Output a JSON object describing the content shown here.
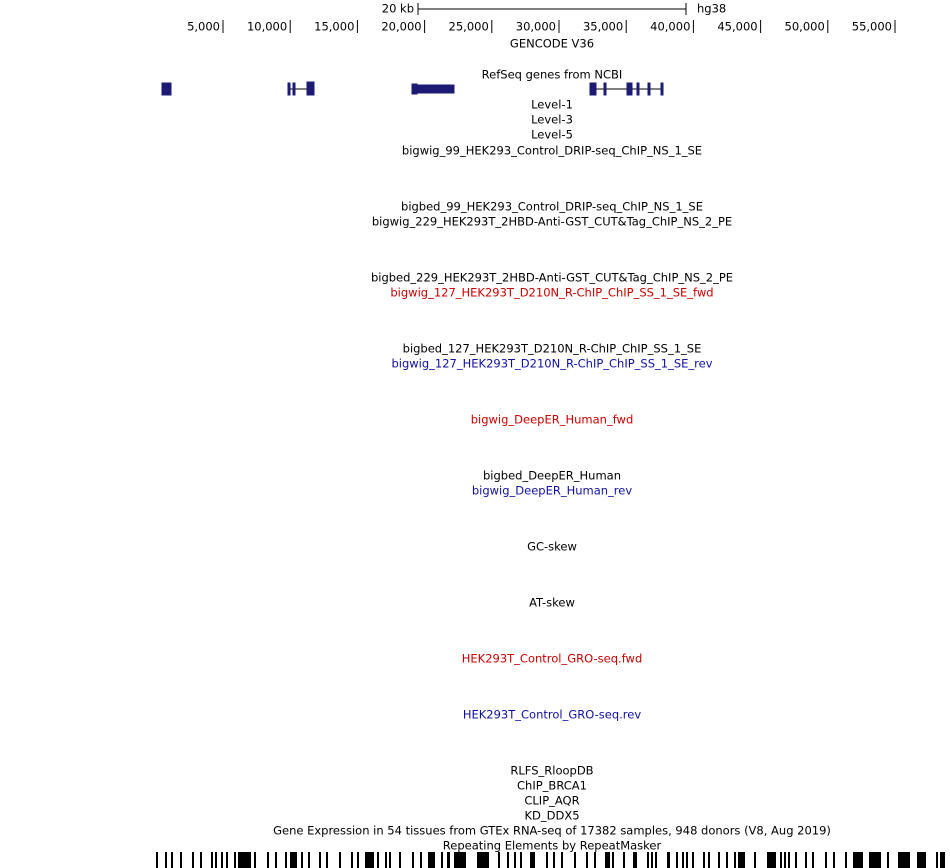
{
  "scale": {
    "size": "20 kb",
    "assembly": "hg38"
  },
  "ruler": {
    "ticks": [
      "5,000",
      "10,000",
      "15,000",
      "20,000",
      "25,000",
      "30,000",
      "35,000",
      "40,000",
      "45,000",
      "50,000",
      "55,000"
    ]
  },
  "tracks": [
    "GENCODE V36",
    "RefSeq genes from NCBI",
    "Level-1",
    "Level-3",
    "Level-5",
    "bigwig_99_HEK293_Control_DRIP-seq_ChIP_NS_1_SE",
    "bigbed_99_HEK293_Control_DRIP-seq_ChIP_NS_1_SE",
    "bigwig_229_HEK293T_2HBD-Anti-GST_CUT&Tag_ChIP_NS_2_PE",
    "bigbed_229_HEK293T_2HBD-Anti-GST_CUT&Tag_ChIP_NS_2_PE",
    "bigwig_127_HEK293T_D210N_R-ChIP_ChIP_SS_1_SE_fwd",
    "bigbed_127_HEK293T_D210N_R-ChIP_ChIP_SS_1_SE",
    "bigwig_127_HEK293T_D210N_R-ChIP_ChIP_SS_1_SE_rev",
    "bigwig_DeepER_Human_fwd",
    "bigbed_DeepER_Human",
    "bigwig_DeepER_Human_rev",
    "GC-skew",
    "AT-skew",
    "HEK293T_Control_GRO-seq.fwd",
    "HEK293T_Control_GRO-seq.rev",
    "RLFS_RloopDB",
    "ChIP_BRCA1",
    "CLIP_AQR",
    "KD_DDX5",
    "Gene Expression in 54 tissues from GTEx RNA-seq of 17382 samples, 948 donors (V8, Aug 2019)",
    "Repeating Elements by RepeatMasker"
  ]
}
